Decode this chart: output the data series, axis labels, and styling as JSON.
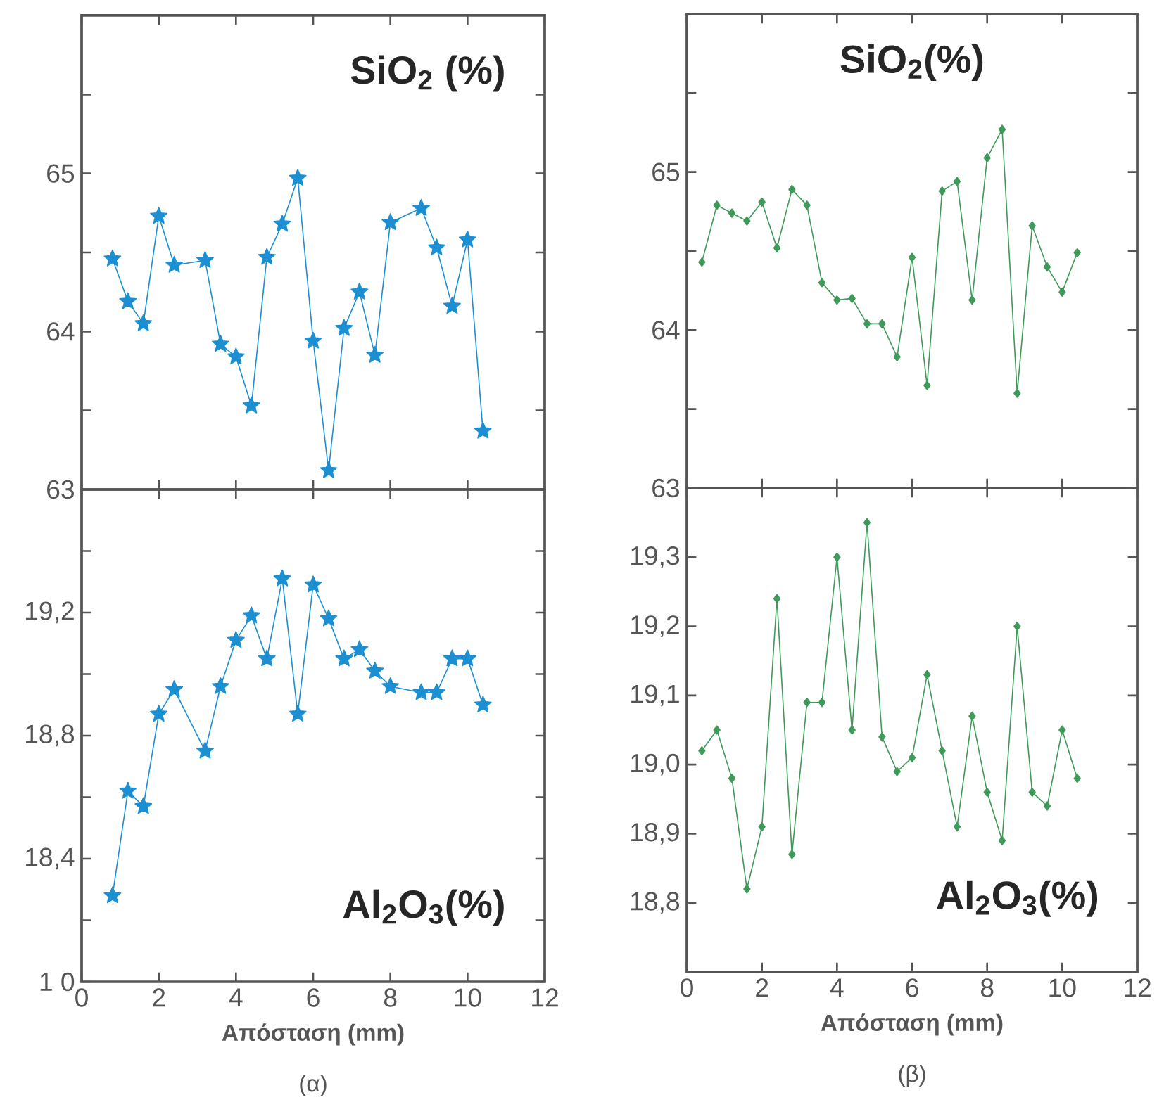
{
  "chart_data": [
    {
      "type": "line",
      "annotations": [
        "SiO$_{2}$ (%)"
      ],
      "xlim": [
        0,
        12
      ],
      "xticks": [
        0,
        2,
        4,
        6,
        8,
        10,
        12
      ],
      "ylim": [
        63,
        66
      ],
      "yticks": [
        63,
        {
          "value": 63.5,
          "label": null
        },
        64,
        {
          "value": 64.5,
          "label": null
        },
        65,
        {
          "value": 65.5,
          "label": null
        }
      ],
      "tick_labels": "y",
      "marker": "star",
      "line_style": "solid",
      "series": [
        {
          "color": "#1b8fd2",
          "x": [
            0.8,
            1.2,
            1.6,
            2.0,
            2.4,
            3.2,
            3.6,
            4.0,
            4.4,
            4.8,
            5.2,
            5.6,
            6.0,
            6.4,
            6.8,
            7.2,
            7.6,
            8.0,
            8.8,
            9.2,
            9.6,
            10.0,
            10.4
          ],
          "values": [
            64.46,
            64.19,
            64.05,
            64.73,
            64.42,
            64.45,
            63.92,
            63.84,
            63.53,
            64.47,
            64.68,
            64.97,
            63.94,
            63.12,
            64.02,
            64.25,
            63.85,
            64.69,
            64.78,
            64.53,
            64.16,
            64.58,
            63.37
          ]
        }
      ]
    },
    {
      "type": "line",
      "annotations": [
        "SiO$_{2}$(%)"
      ],
      "xlim": [
        0,
        12
      ],
      "xticks": [
        0,
        2,
        4,
        6,
        8,
        10,
        12
      ],
      "ylim": [
        63,
        66
      ],
      "yticks": [
        63,
        {
          "value": 63.5,
          "label": null
        },
        64,
        {
          "value": 64.5,
          "label": null
        },
        65,
        {
          "value": 65.5,
          "label": null
        }
      ],
      "tick_labels": "y",
      "marker": "diamond",
      "line_style": "solid",
      "series": [
        {
          "color": "#3f9a5a",
          "x": [
            0.4,
            0.8,
            1.2,
            1.6,
            2.0,
            2.4,
            2.8,
            3.2,
            3.6,
            4.0,
            4.4,
            4.8,
            5.2,
            5.6,
            6.0,
            6.4,
            6.8,
            7.2,
            7.6,
            8.0,
            8.4,
            8.8,
            9.2,
            9.6,
            10.0,
            10.4
          ],
          "values": [
            64.43,
            64.79,
            64.74,
            64.69,
            64.81,
            64.52,
            64.89,
            64.79,
            64.3,
            64.19,
            64.2,
            64.04,
            64.04,
            63.83,
            64.46,
            63.65,
            64.88,
            64.94,
            64.19,
            65.09,
            65.27,
            63.6,
            64.66,
            64.4,
            64.24,
            64.49
          ]
        }
      ]
    },
    {
      "type": "line",
      "xlabel": "Απόσταση (mm)",
      "annotations": [
        "Al$_{2}$O$_{3}$(%)",
        "(α)"
      ],
      "xlim": [
        0,
        12
      ],
      "xticks": [
        0,
        2,
        4,
        6,
        8,
        10,
        12
      ],
      "ylim": [
        18.0,
        19.6
      ],
      "yticks": [
        {
          "value": 18.0,
          "label": "1 0"
        },
        {
          "value": 18.2,
          "label": null
        },
        {
          "value": 18.4,
          "label": "18,4"
        },
        {
          "value": 18.6,
          "label": null
        },
        {
          "value": 18.8,
          "label": "18,8"
        },
        {
          "value": 19.0,
          "label": null
        },
        {
          "value": 19.2,
          "label": "19,2"
        },
        {
          "value": 19.4,
          "label": null
        }
      ],
      "marker": "star",
      "line_style": "solid",
      "series": [
        {
          "color": "#1b8fd2",
          "x": [
            0.8,
            1.2,
            1.6,
            2.0,
            2.4,
            3.2,
            3.6,
            4.0,
            4.4,
            4.8,
            5.2,
            5.6,
            6.0,
            6.4,
            6.8,
            7.2,
            7.6,
            8.0,
            8.8,
            9.2,
            9.6,
            10.0,
            10.4
          ],
          "values": [
            18.28,
            18.62,
            18.57,
            18.87,
            18.95,
            18.75,
            18.96,
            19.11,
            19.19,
            19.05,
            19.31,
            18.87,
            19.29,
            19.18,
            19.05,
            19.08,
            19.01,
            18.96,
            18.94,
            18.94,
            19.05,
            19.05,
            18.9
          ]
        }
      ]
    },
    {
      "type": "line",
      "xlabel": "Απόσταση (mm)",
      "annotations": [
        "Al$_{2}$O$_{3}$(%)",
        "(β)"
      ],
      "xlim": [
        0,
        12
      ],
      "xticks": [
        0,
        2,
        4,
        6,
        8,
        10,
        12
      ],
      "ylim": [
        18.7,
        19.4
      ],
      "yticks": [
        {
          "value": 18.8,
          "label": "18,8"
        },
        {
          "value": 18.9,
          "label": "18,9"
        },
        {
          "value": 19.0,
          "label": "19,0"
        },
        {
          "value": 19.1,
          "label": "19,1"
        },
        {
          "value": 19.2,
          "label": "19,2"
        },
        {
          "value": 19.3,
          "label": "19,3"
        }
      ],
      "marker": "diamond",
      "line_style": "solid",
      "series": [
        {
          "color": "#3f9a5a",
          "x": [
            0.4,
            0.8,
            1.2,
            1.6,
            2.0,
            2.4,
            2.8,
            3.2,
            3.6,
            4.0,
            4.4,
            4.8,
            5.2,
            5.6,
            6.0,
            6.4,
            6.8,
            7.2,
            7.6,
            8.0,
            8.4,
            8.8,
            9.2,
            9.6,
            10.0,
            10.4
          ],
          "values": [
            19.02,
            19.05,
            18.98,
            18.82,
            18.91,
            19.24,
            18.87,
            19.09,
            19.09,
            19.3,
            19.05,
            19.35,
            19.04,
            18.99,
            19.01,
            19.13,
            19.02,
            18.91,
            19.07,
            18.96,
            18.89,
            19.2,
            18.96,
            18.94,
            19.05,
            18.98
          ]
        }
      ]
    }
  ]
}
